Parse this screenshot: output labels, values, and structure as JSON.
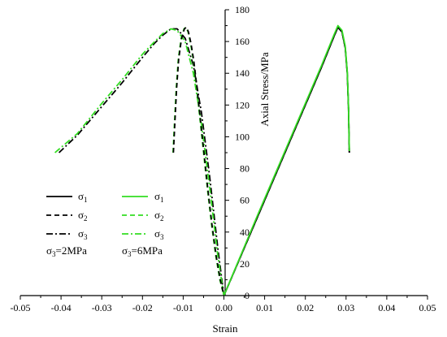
{
  "chart_data": {
    "type": "line",
    "title": "",
    "xlabel": "Strain",
    "ylabel": "Axial Stress/MPa",
    "xlim": [
      -0.05,
      0.05
    ],
    "ylim": [
      0,
      180
    ],
    "xticks": [
      "-0.05",
      "-0.04",
      "-0.03",
      "-0.02",
      "-0.01",
      "0.00",
      "0.01",
      "0.02",
      "0.03",
      "0.04",
      "0.05"
    ],
    "yticks": [
      "0",
      "20",
      "40",
      "60",
      "80",
      "100",
      "120",
      "140",
      "160",
      "180"
    ],
    "grid": false,
    "colors": {
      "group_2MPa": "#000000",
      "group_6MPa": "#33dd22"
    },
    "legend": {
      "groups": [
        {
          "caption": "σ3=2MPa",
          "entries": [
            {
              "label": "σ1",
              "style": "solid"
            },
            {
              "label": "σ2",
              "style": "dash"
            },
            {
              "label": "σ3",
              "style": "dashdot"
            }
          ]
        },
        {
          "caption": "σ3=6MPa",
          "entries": [
            {
              "label": "σ1",
              "style": "solid"
            },
            {
              "label": "σ2",
              "style": "dash"
            },
            {
              "label": "σ3",
              "style": "dashdot"
            }
          ]
        }
      ]
    },
    "series": [
      {
        "group": "σ3=2MPa",
        "label": "σ1",
        "style": "solid",
        "x": [
          0.0,
          0.004,
          0.008,
          0.012,
          0.016,
          0.02,
          0.024,
          0.027,
          0.028,
          0.029,
          0.0298,
          0.0303,
          0.0306,
          0.0308
        ],
        "y": [
          0,
          24,
          48,
          72,
          96,
          120,
          144,
          163,
          169,
          166,
          156,
          140,
          118,
          90
        ]
      },
      {
        "group": "σ3=2MPa",
        "label": "σ2",
        "style": "dash",
        "x": [
          0.0,
          0.004,
          0.008,
          0.012,
          0.016,
          0.02,
          0.024,
          0.027,
          0.028,
          0.029,
          0.0298,
          0.0303,
          0.0306,
          0.0308
        ],
        "y": [
          0,
          24,
          48,
          72,
          96,
          120,
          144,
          163,
          169,
          166,
          156,
          140,
          118,
          90
        ]
      },
      {
        "group": "σ3=2MPa",
        "label": "σ3",
        "style": "dashdot",
        "x": [
          -0.0405,
          -0.036,
          -0.03,
          -0.025,
          -0.02,
          -0.017,
          -0.015,
          -0.013,
          -0.0115,
          -0.0095,
          -0.0075,
          -0.0055,
          -0.0035,
          -0.0015,
          0.0
        ],
        "y": [
          90,
          101,
          119,
          134,
          150,
          159,
          164,
          168,
          168,
          162,
          145,
          115,
          75,
          30,
          0
        ]
      },
      {
        "group": "σ3=6MPa",
        "label": "σ1",
        "style": "solid",
        "x": [
          0.0,
          0.004,
          0.008,
          0.012,
          0.016,
          0.02,
          0.024,
          0.027,
          0.028,
          0.029,
          0.0298,
          0.0303,
          0.0306,
          0.0308
        ],
        "y": [
          0,
          24.5,
          49,
          73,
          97,
          121,
          145,
          164,
          170,
          167,
          157,
          141,
          119,
          91
        ]
      },
      {
        "group": "σ3=6MPa",
        "label": "σ2",
        "style": "dash",
        "x": [
          -0.0125,
          -0.0121,
          -0.0117,
          -0.0112,
          -0.0105,
          -0.0098,
          -0.0093,
          -0.0088,
          -0.0082,
          -0.0075,
          -0.0068,
          -0.006,
          -0.005,
          -0.004,
          -0.003,
          -0.002,
          -0.001,
          0.0
        ],
        "y": [
          90,
          111,
          131,
          149,
          162,
          168,
          169,
          166,
          159,
          148,
          133,
          114,
          90,
          66,
          44,
          25,
          10,
          0
        ]
      },
      {
        "group": "σ3=6MPa",
        "label": "σ3",
        "style": "dashdot",
        "x": [
          -0.0415,
          -0.036,
          -0.03,
          -0.025,
          -0.02,
          -0.017,
          -0.015,
          -0.013,
          -0.0115,
          -0.0095,
          -0.0075,
          -0.0055,
          -0.0035,
          -0.0015,
          0.0
        ],
        "y": [
          90,
          102,
          121,
          136,
          152,
          160,
          165,
          168,
          167,
          160,
          140,
          108,
          68,
          25,
          0
        ]
      }
    ],
    "extra_series": [
      {
        "group": "σ3=2MPa",
        "label": "σ2",
        "style": "dash",
        "x": [
          -0.0124,
          -0.012,
          -0.0116,
          -0.0111,
          -0.0104,
          -0.0097,
          -0.0092,
          -0.0087,
          -0.0081,
          -0.0074,
          -0.0067,
          -0.0059,
          -0.0049,
          -0.0039,
          -0.0029,
          -0.0019,
          -0.0009,
          0.0
        ],
        "y": [
          90,
          111,
          131,
          149,
          162,
          168,
          169,
          166,
          159,
          148,
          133,
          114,
          90,
          66,
          44,
          25,
          10,
          0
        ]
      }
    ]
  }
}
